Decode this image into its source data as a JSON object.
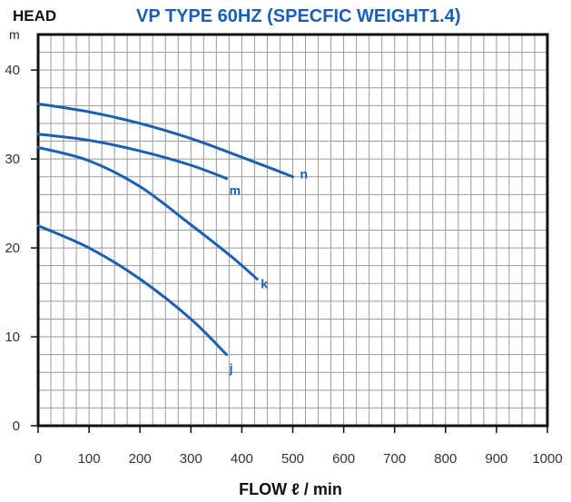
{
  "chart_data": {
    "type": "line",
    "title": "VP TYPE 60HZ (SPECFIC WEIGHT1.4)",
    "ylabel": "HEAD",
    "yunit": "m",
    "xlabel": "FLOW ℓ / min",
    "xlim": [
      0,
      1000
    ],
    "ylim": [
      0,
      44
    ],
    "xticks": [
      "0",
      "100",
      "200",
      "300",
      "400",
      "500",
      "600",
      "700",
      "800",
      "900",
      "1000"
    ],
    "yticks": [
      "0",
      "10",
      "20",
      "30",
      "40"
    ],
    "ytick_values": [
      0,
      10,
      20,
      30,
      40
    ],
    "grid": true,
    "series_color": "#1a5fb4",
    "series": [
      {
        "name": "n",
        "x": [
          0,
          100,
          200,
          300,
          400,
          460,
          500
        ],
        "y": [
          36.2,
          35.3,
          34.0,
          32.3,
          30.2,
          28.9,
          28.0
        ]
      },
      {
        "name": "m",
        "x": [
          0,
          100,
          200,
          300,
          370
        ],
        "y": [
          32.8,
          32.1,
          30.9,
          29.3,
          27.8
        ]
      },
      {
        "name": "k",
        "x": [
          0,
          100,
          200,
          300,
          380,
          430
        ],
        "y": [
          31.3,
          29.8,
          26.9,
          22.6,
          19.0,
          16.5
        ]
      },
      {
        "name": "j",
        "x": [
          0,
          100,
          200,
          300,
          370
        ],
        "y": [
          22.5,
          20.0,
          16.5,
          12.0,
          8.0
        ]
      }
    ]
  }
}
